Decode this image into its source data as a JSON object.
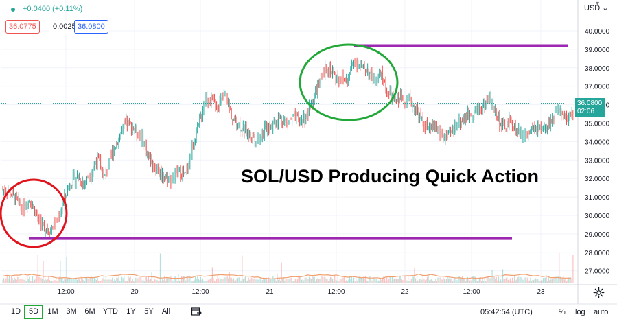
{
  "header": {
    "change": "+0.0400 (+0.11%)",
    "bid": "36.0775",
    "spread": "0.0025",
    "ask": "36.0800",
    "currency": "USD"
  },
  "price_tag": {
    "price": "36.0800",
    "countdown": "02:06"
  },
  "annotation_title": "SOL/USD Producing Quick Action",
  "bottom_bar": {
    "ranges": [
      "1D",
      "5D",
      "1M",
      "3M",
      "6M",
      "YTD",
      "1Y",
      "5Y",
      "All"
    ],
    "active_range": "5D",
    "clock": "05:42:54 (UTC)",
    "percent_label": "%",
    "log_label": "log",
    "auto_label": "auto"
  },
  "colors": {
    "up": "#26a69a",
    "down": "#ef5350",
    "support_resistance": "#9c27b0",
    "red_circle": "#e0141c",
    "green_circle": "#21a839",
    "volume_ma": "#f0a070"
  },
  "chart_data": {
    "type": "candlestick",
    "x_tick_labels": [
      "12:00",
      "20",
      "12:00",
      "21",
      "12:00",
      "22",
      "12:00",
      "23"
    ],
    "y_tick_labels": [
      "40.0000",
      "39.0000",
      "38.0000",
      "37.0000",
      "36.0000",
      "35.0000",
      "34.0000",
      "33.0000",
      "32.0000",
      "31.0000",
      "30.0000",
      "29.0000",
      "28.0000",
      "27.0000"
    ],
    "ylim": [
      26.6,
      40.6
    ],
    "x_range": [
      0,
      4.5
    ],
    "price_path": [
      [
        0.0,
        31.4
      ],
      [
        0.06,
        30.9
      ],
      [
        0.12,
        30.4
      ],
      [
        0.17,
        30.9
      ],
      [
        0.22,
        30.0
      ],
      [
        0.27,
        29.4
      ],
      [
        0.32,
        29.2
      ],
      [
        0.37,
        29.7
      ],
      [
        0.42,
        30.8
      ],
      [
        0.47,
        31.8
      ],
      [
        0.52,
        32.1
      ],
      [
        0.57,
        31.7
      ],
      [
        0.62,
        32.3
      ],
      [
        0.67,
        33.1
      ],
      [
        0.72,
        32.0
      ],
      [
        0.78,
        33.4
      ],
      [
        0.84,
        34.4
      ],
      [
        0.89,
        35.0
      ],
      [
        0.94,
        34.7
      ],
      [
        1.0,
        34.2
      ],
      [
        1.06,
        33.0
      ],
      [
        1.12,
        32.4
      ],
      [
        1.17,
        32.1
      ],
      [
        1.22,
        32.0
      ],
      [
        1.27,
        32.4
      ],
      [
        1.32,
        32.1
      ],
      [
        1.37,
        33.6
      ],
      [
        1.42,
        34.9
      ],
      [
        1.47,
        36.4
      ],
      [
        1.52,
        36.2
      ],
      [
        1.57,
        36.0
      ],
      [
        1.62,
        36.5
      ],
      [
        1.67,
        35.2
      ],
      [
        1.72,
        34.9
      ],
      [
        1.77,
        34.5
      ],
      [
        1.82,
        34.3
      ],
      [
        1.87,
        34.2
      ],
      [
        1.92,
        34.8
      ],
      [
        1.97,
        35.0
      ],
      [
        2.02,
        35.3
      ],
      [
        2.07,
        35.0
      ],
      [
        2.12,
        35.3
      ],
      [
        2.17,
        35.1
      ],
      [
        2.22,
        35.4
      ],
      [
        2.27,
        36.4
      ],
      [
        2.32,
        37.3
      ],
      [
        2.37,
        38.1
      ],
      [
        2.42,
        37.6
      ],
      [
        2.47,
        37.4
      ],
      [
        2.52,
        37.3
      ],
      [
        2.57,
        38.5
      ],
      [
        2.62,
        38.0
      ],
      [
        2.67,
        37.9
      ],
      [
        2.72,
        37.2
      ],
      [
        2.77,
        37.6
      ],
      [
        2.82,
        36.6
      ],
      [
        2.87,
        36.2
      ],
      [
        2.92,
        36.4
      ],
      [
        2.97,
        36.3
      ],
      [
        3.02,
        35.8
      ],
      [
        3.07,
        35.1
      ],
      [
        3.12,
        34.6
      ],
      [
        3.17,
        34.9
      ],
      [
        3.22,
        34.2
      ],
      [
        3.27,
        34.3
      ],
      [
        3.32,
        34.9
      ],
      [
        3.37,
        35.2
      ],
      [
        3.42,
        35.5
      ],
      [
        3.47,
        35.7
      ],
      [
        3.52,
        35.9
      ],
      [
        3.57,
        36.4
      ],
      [
        3.62,
        35.5
      ],
      [
        3.67,
        34.7
      ],
      [
        3.72,
        35.1
      ],
      [
        3.77,
        34.6
      ],
      [
        3.82,
        34.3
      ],
      [
        3.87,
        34.5
      ],
      [
        3.92,
        34.7
      ],
      [
        3.97,
        34.5
      ],
      [
        4.02,
        35.1
      ],
      [
        4.07,
        35.6
      ],
      [
        4.12,
        35.2
      ],
      [
        4.17,
        35.4
      ],
      [
        4.22,
        36.08
      ]
    ],
    "support_level": 28.75,
    "resistance_level": 39.2,
    "last_price": 36.08,
    "grid": true,
    "volume_pane": true
  }
}
